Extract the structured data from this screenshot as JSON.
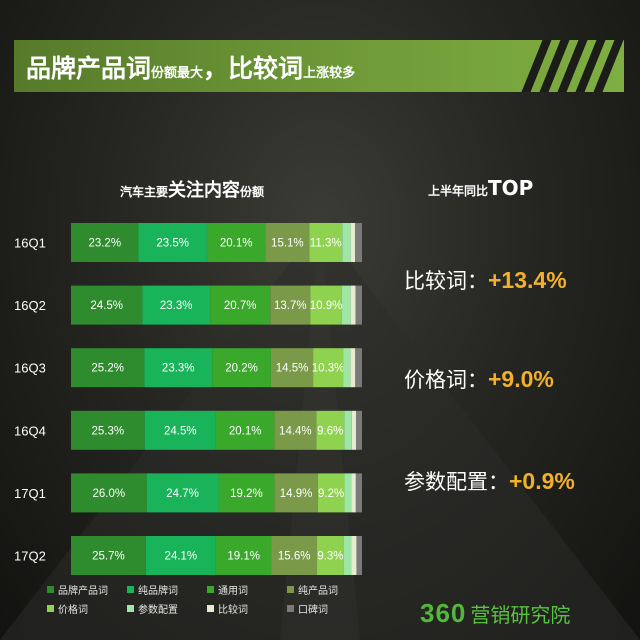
{
  "banner": {
    "part1_big": "品牌产品词",
    "part1_small": "份额最大",
    "sep": "，",
    "part2_big": "比较词",
    "part2_small": "上涨较多"
  },
  "chart_title": {
    "small_left": "汽车主要",
    "big": "关注内容",
    "small_right": "份额"
  },
  "top_title": {
    "small": "上半年同比",
    "big": "TOP"
  },
  "stats": [
    {
      "label": "比较词：",
      "value": "+13.4%"
    },
    {
      "label": "价格词：",
      "value": "+9.0%"
    },
    {
      "label": "参数配置：",
      "value": "+0.9%"
    }
  ],
  "legend": [
    {
      "label": "品牌产品词",
      "color": "#2e8b2e"
    },
    {
      "label": "纯品牌词",
      "color": "#19b35a"
    },
    {
      "label": "通用词",
      "color": "#3aa82a"
    },
    {
      "label": "纯产品词",
      "color": "#7a9a4a"
    },
    {
      "label": "价格词",
      "color": "#8fd24f"
    },
    {
      "label": "参数配置",
      "color": "#9ee6a6"
    },
    {
      "label": "比较词",
      "color": "#e6ecd0"
    },
    {
      "label": "口碑词",
      "color": "#7a7a7a"
    }
  ],
  "logo": {
    "num": "360",
    "text": "营销研究院"
  },
  "chart_data": {
    "type": "bar",
    "orientation": "horizontal",
    "stacked": true,
    "title": "汽车主要关注内容份额",
    "categories": [
      "16Q1",
      "16Q2",
      "16Q3",
      "16Q4",
      "17Q1",
      "17Q2"
    ],
    "series": [
      {
        "name": "品牌产品词",
        "color": "#2e8b2e",
        "values": [
          23.2,
          24.5,
          25.2,
          25.3,
          26.0,
          25.7
        ]
      },
      {
        "name": "纯品牌词",
        "color": "#19b35a",
        "values": [
          23.5,
          23.3,
          23.3,
          24.5,
          24.7,
          24.1
        ]
      },
      {
        "name": "通用词",
        "color": "#3aa82a",
        "values": [
          20.1,
          20.7,
          20.2,
          20.1,
          19.2,
          19.1
        ]
      },
      {
        "name": "纯产品词",
        "color": "#7a9a4a",
        "values": [
          15.1,
          13.7,
          14.5,
          14.4,
          14.9,
          15.6
        ]
      },
      {
        "name": "价格词",
        "color": "#8fd24f",
        "values": [
          11.3,
          10.9,
          10.3,
          9.6,
          9.2,
          9.3
        ]
      },
      {
        "name": "参数配置",
        "color": "#9ee6a6",
        "values": [
          2.9,
          3.0,
          2.5,
          2.6,
          2.4,
          2.6
        ]
      },
      {
        "name": "比较词",
        "color": "#e6ecd0",
        "values": [
          1.5,
          1.7,
          1.7,
          1.5,
          1.5,
          1.7
        ]
      },
      {
        "name": "口碑词",
        "color": "#7a7a7a",
        "values": [
          2.4,
          2.2,
          2.3,
          2.0,
          2.1,
          1.9
        ]
      }
    ],
    "data_label_series_count": 5,
    "xlim": [
      0,
      100
    ],
    "legend_position": "bottom"
  }
}
